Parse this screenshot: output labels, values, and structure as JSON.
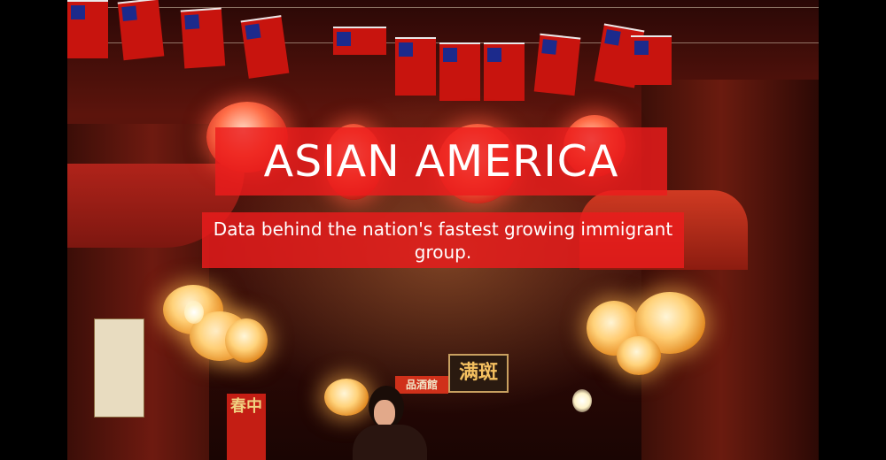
{
  "title": "ASIAN AMERICA",
  "subtitle": "Data behind the nation's fastest growing immigrant group.",
  "colors": {
    "banner": "#EC1C1C",
    "text": "#FFFFFF",
    "letterbox": "#000000"
  },
  "photo": {
    "signs": {
      "shop_sign": "满斑",
      "small_sign": "品酒館",
      "banner_sign": "春中"
    }
  }
}
